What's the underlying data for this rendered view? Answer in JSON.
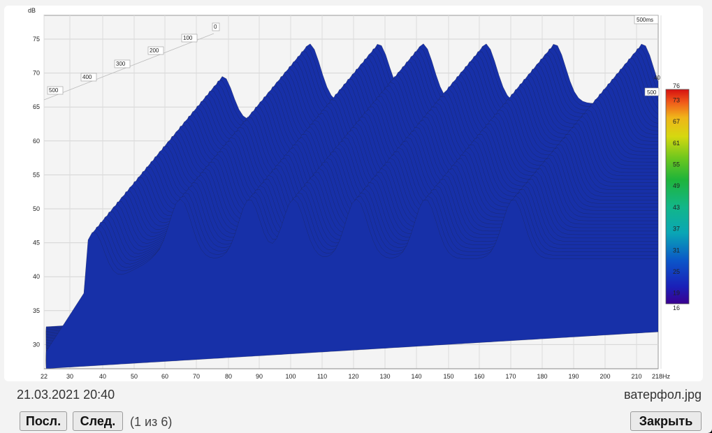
{
  "viewer": {
    "date": "21.03.2021 20:40",
    "filename": "ватерфол.jpg",
    "prev_label": "Посл.",
    "next_label": "След.",
    "counter": "(1 из 6)",
    "close_label": "Закрыть"
  },
  "chart_data": {
    "type": "waterfall-3d",
    "ylabel": "dB",
    "y_ticks": [
      "75",
      "70",
      "65",
      "60",
      "55",
      "50",
      "45",
      "40",
      "35",
      "30"
    ],
    "x_ticks": [
      "22",
      "30",
      "40",
      "50",
      "60",
      "70",
      "80",
      "90",
      "100",
      "110",
      "120",
      "130",
      "140",
      "150",
      "160",
      "170",
      "180",
      "190",
      "200",
      "210",
      "218Hz"
    ],
    "time_ticks": [
      "500",
      "400",
      "300",
      "200",
      "100",
      "0"
    ],
    "time_corner_label": "500ms",
    "time_back_labels": [
      "40",
      "500"
    ],
    "colorbar_ticks": [
      "76",
      "73",
      "67",
      "61",
      "55",
      "49",
      "43",
      "37",
      "31",
      "25",
      "19",
      "16"
    ],
    "colorbar_range": [
      16,
      76
    ],
    "peak_frequencies_hz": [
      78,
      106,
      128,
      142,
      162,
      184,
      212
    ]
  }
}
